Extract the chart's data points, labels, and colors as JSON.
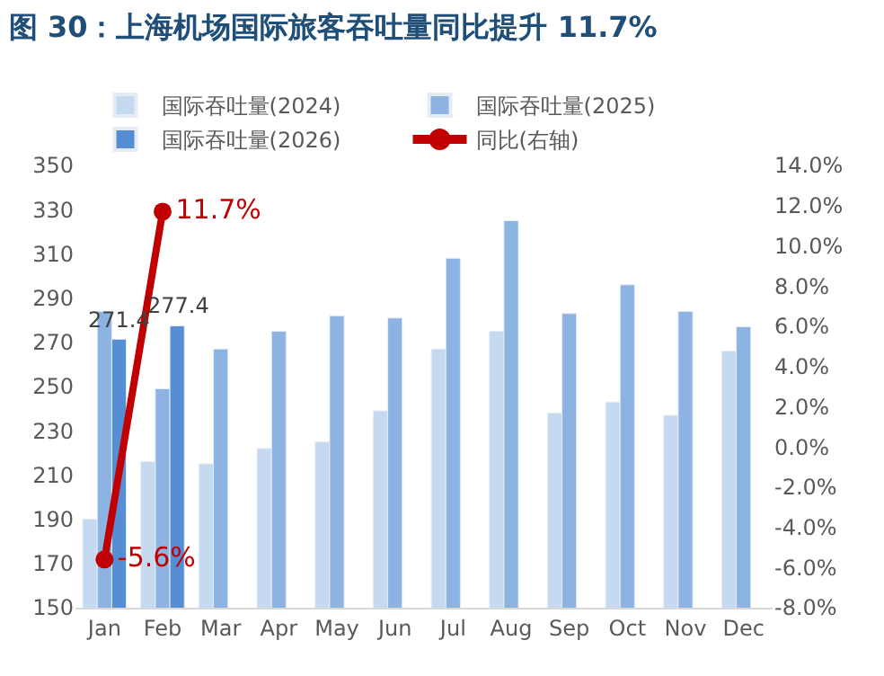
{
  "chart_data": {
    "type": "bar",
    "title": "图 30：上海机场国际旅客吞吐量同比提升 11.7%",
    "categories": [
      "Jan",
      "Feb",
      "Mar",
      "Apr",
      "May",
      "Jun",
      "Jul",
      "Aug",
      "Sep",
      "Oct",
      "Nov",
      "Dec"
    ],
    "series": [
      {
        "name": "国际吞吐量(2024)",
        "color": "#c5d9f0",
        "values": [
          190,
          216,
          215,
          222,
          225,
          239,
          267,
          275,
          238,
          243,
          237,
          266
        ]
      },
      {
        "name": "国际吞吐量(2025)",
        "color": "#8db3e2",
        "values": [
          284,
          249,
          267,
          275,
          282,
          281,
          308,
          325,
          283,
          296,
          284,
          277
        ]
      },
      {
        "name": "国际吞吐量(2026)",
        "color": "#558ed5",
        "values": [
          271.4,
          277.4,
          null,
          null,
          null,
          null,
          null,
          null,
          null,
          null,
          null,
          null
        ],
        "value_labels": [
          "271.4",
          "277.4",
          null,
          null,
          null,
          null,
          null,
          null,
          null,
          null,
          null,
          null
        ]
      },
      {
        "name": "同比(右轴)",
        "type": "line",
        "axis": "y2",
        "color": "#c00000",
        "marker": "circle",
        "values": [
          -5.6,
          11.7,
          null,
          null,
          null,
          null,
          null,
          null,
          null,
          null,
          null,
          null
        ],
        "value_labels": [
          "-5.6%",
          "11.7%",
          null,
          null,
          null,
          null,
          null,
          null,
          null,
          null,
          null,
          null
        ]
      }
    ],
    "ylim": [
      150,
      350
    ],
    "yticks": [
      150,
      170,
      190,
      210,
      230,
      250,
      270,
      290,
      310,
      330,
      350
    ],
    "y2lim": [
      -8,
      14
    ],
    "y2ticks": [
      {
        "value": -8,
        "label": "-8.0%"
      },
      {
        "value": -6,
        "label": "-6.0%"
      },
      {
        "value": -4,
        "label": "-4.0%"
      },
      {
        "value": -2,
        "label": "-2.0%"
      },
      {
        "value": 0,
        "label": "0.0%"
      },
      {
        "value": 2,
        "label": "2.0%"
      },
      {
        "value": 4,
        "label": "4.0%"
      },
      {
        "value": 6,
        "label": "6.0%"
      },
      {
        "value": 8,
        "label": "8.0%"
      },
      {
        "value": 10,
        "label": "10.0%"
      },
      {
        "value": 12,
        "label": "12.0%"
      },
      {
        "value": 14,
        "label": "14.0%"
      }
    ],
    "legend": "top"
  }
}
